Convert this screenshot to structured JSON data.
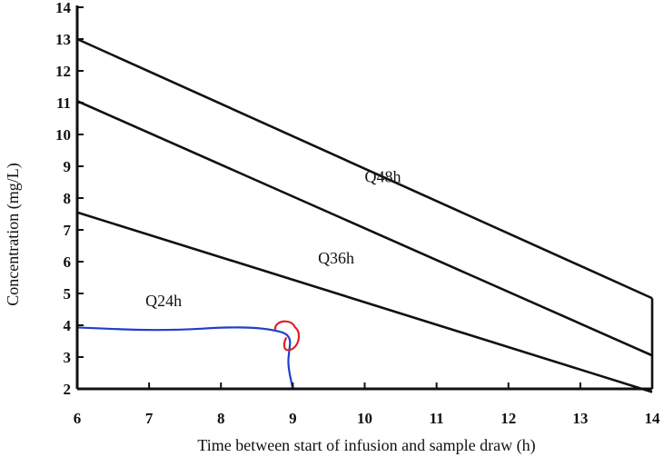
{
  "chart_data": {
    "type": "line",
    "title": "",
    "xlabel": "Time between start of infusion and sample draw (h)",
    "ylabel": "Concentration (mg/L)",
    "xlim": [
      6,
      14
    ],
    "ylim": [
      2,
      14
    ],
    "x_ticks": [
      6,
      7,
      8,
      9,
      10,
      11,
      12,
      13,
      14
    ],
    "y_ticks": [
      2,
      3,
      4,
      5,
      6,
      7,
      8,
      9,
      10,
      11,
      12,
      13,
      14
    ],
    "grid": false,
    "series": [
      {
        "x": [
          6,
          14
        ],
        "y": [
          13.0,
          4.85
        ]
      },
      {
        "x": [
          6,
          14
        ],
        "y": [
          11.05,
          3.05
        ]
      },
      {
        "x": [
          6,
          14
        ],
        "y": [
          7.55,
          1.9
        ]
      }
    ],
    "right_edge": {
      "x": [
        14,
        14
      ],
      "y": [
        4.85,
        2.0
      ]
    },
    "region_labels": [
      {
        "text": "Q48h",
        "x": 10.0,
        "y": 8.5
      },
      {
        "text": "Q36h",
        "x": 9.35,
        "y": 5.95
      },
      {
        "text": "Q24h",
        "x": 6.95,
        "y": 4.6
      }
    ],
    "annotations": {
      "blue_pen_color": "#1f3fcc",
      "red_pen_color": "#e02020",
      "blue_curve": [
        [
          6.0,
          3.93
        ],
        [
          7.2,
          3.82
        ],
        [
          8.3,
          3.97
        ],
        [
          8.85,
          3.82
        ],
        [
          8.97,
          3.6
        ],
        [
          8.95,
          3.2
        ],
        [
          8.93,
          2.75
        ],
        [
          9.0,
          2.0
        ]
      ],
      "red_circle_center": [
        8.93,
        3.65
      ]
    }
  }
}
